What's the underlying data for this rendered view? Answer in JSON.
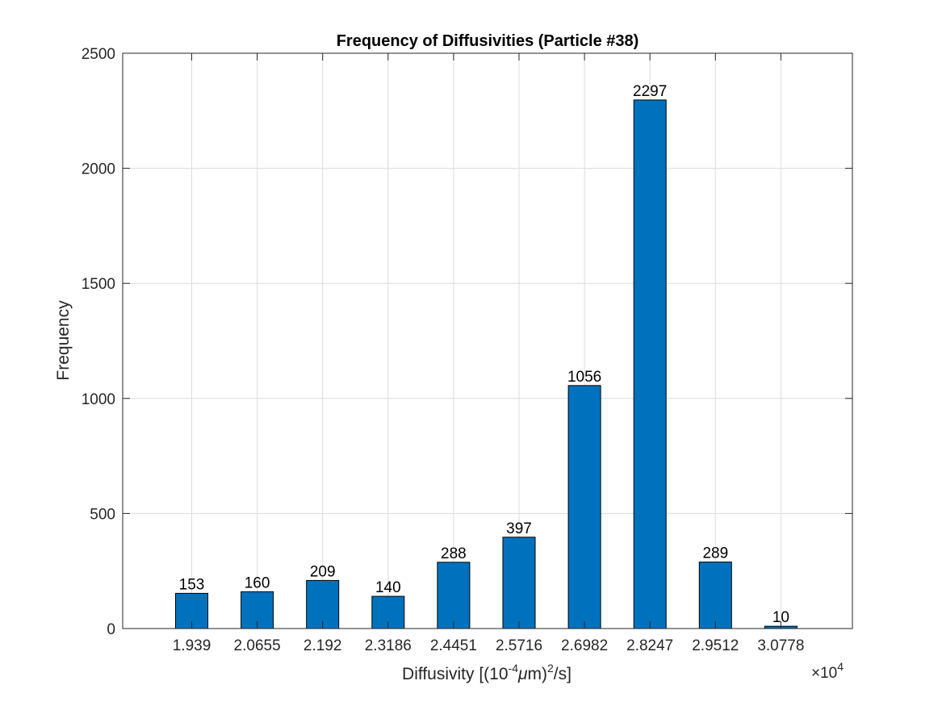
{
  "chart_data": {
    "type": "bar",
    "title": "Frequency of Diffusivities (Particle #38)",
    "xlabel": {
      "prefix": "Diffusivity [(10",
      "sup1": "-4",
      "mu": "μ",
      "mid": "m)",
      "sup2": "2",
      "suffix": "/s]"
    },
    "ylabel": "Frequency",
    "x_multiplier": {
      "base": "×10",
      "exp": "4"
    },
    "categories": [
      "1.939",
      "2.0655",
      "2.192",
      "2.3186",
      "2.4451",
      "2.5716",
      "2.6982",
      "2.8247",
      "2.9512",
      "3.0778"
    ],
    "values": [
      153,
      160,
      209,
      140,
      288,
      397,
      1056,
      2297,
      289,
      10
    ],
    "data_labels": [
      "153",
      "160",
      "209",
      "140",
      "288",
      "397",
      "1056",
      "2297",
      "289",
      "10"
    ],
    "ylim": [
      0,
      2500
    ],
    "yticks": [
      0,
      500,
      1000,
      1500,
      2000,
      2500
    ],
    "ytick_labels": [
      "0",
      "500",
      "1000",
      "1500",
      "2000",
      "2500"
    ],
    "grid": true,
    "bar_color": "#0072BD",
    "bar_edge_color": "#000000"
  }
}
